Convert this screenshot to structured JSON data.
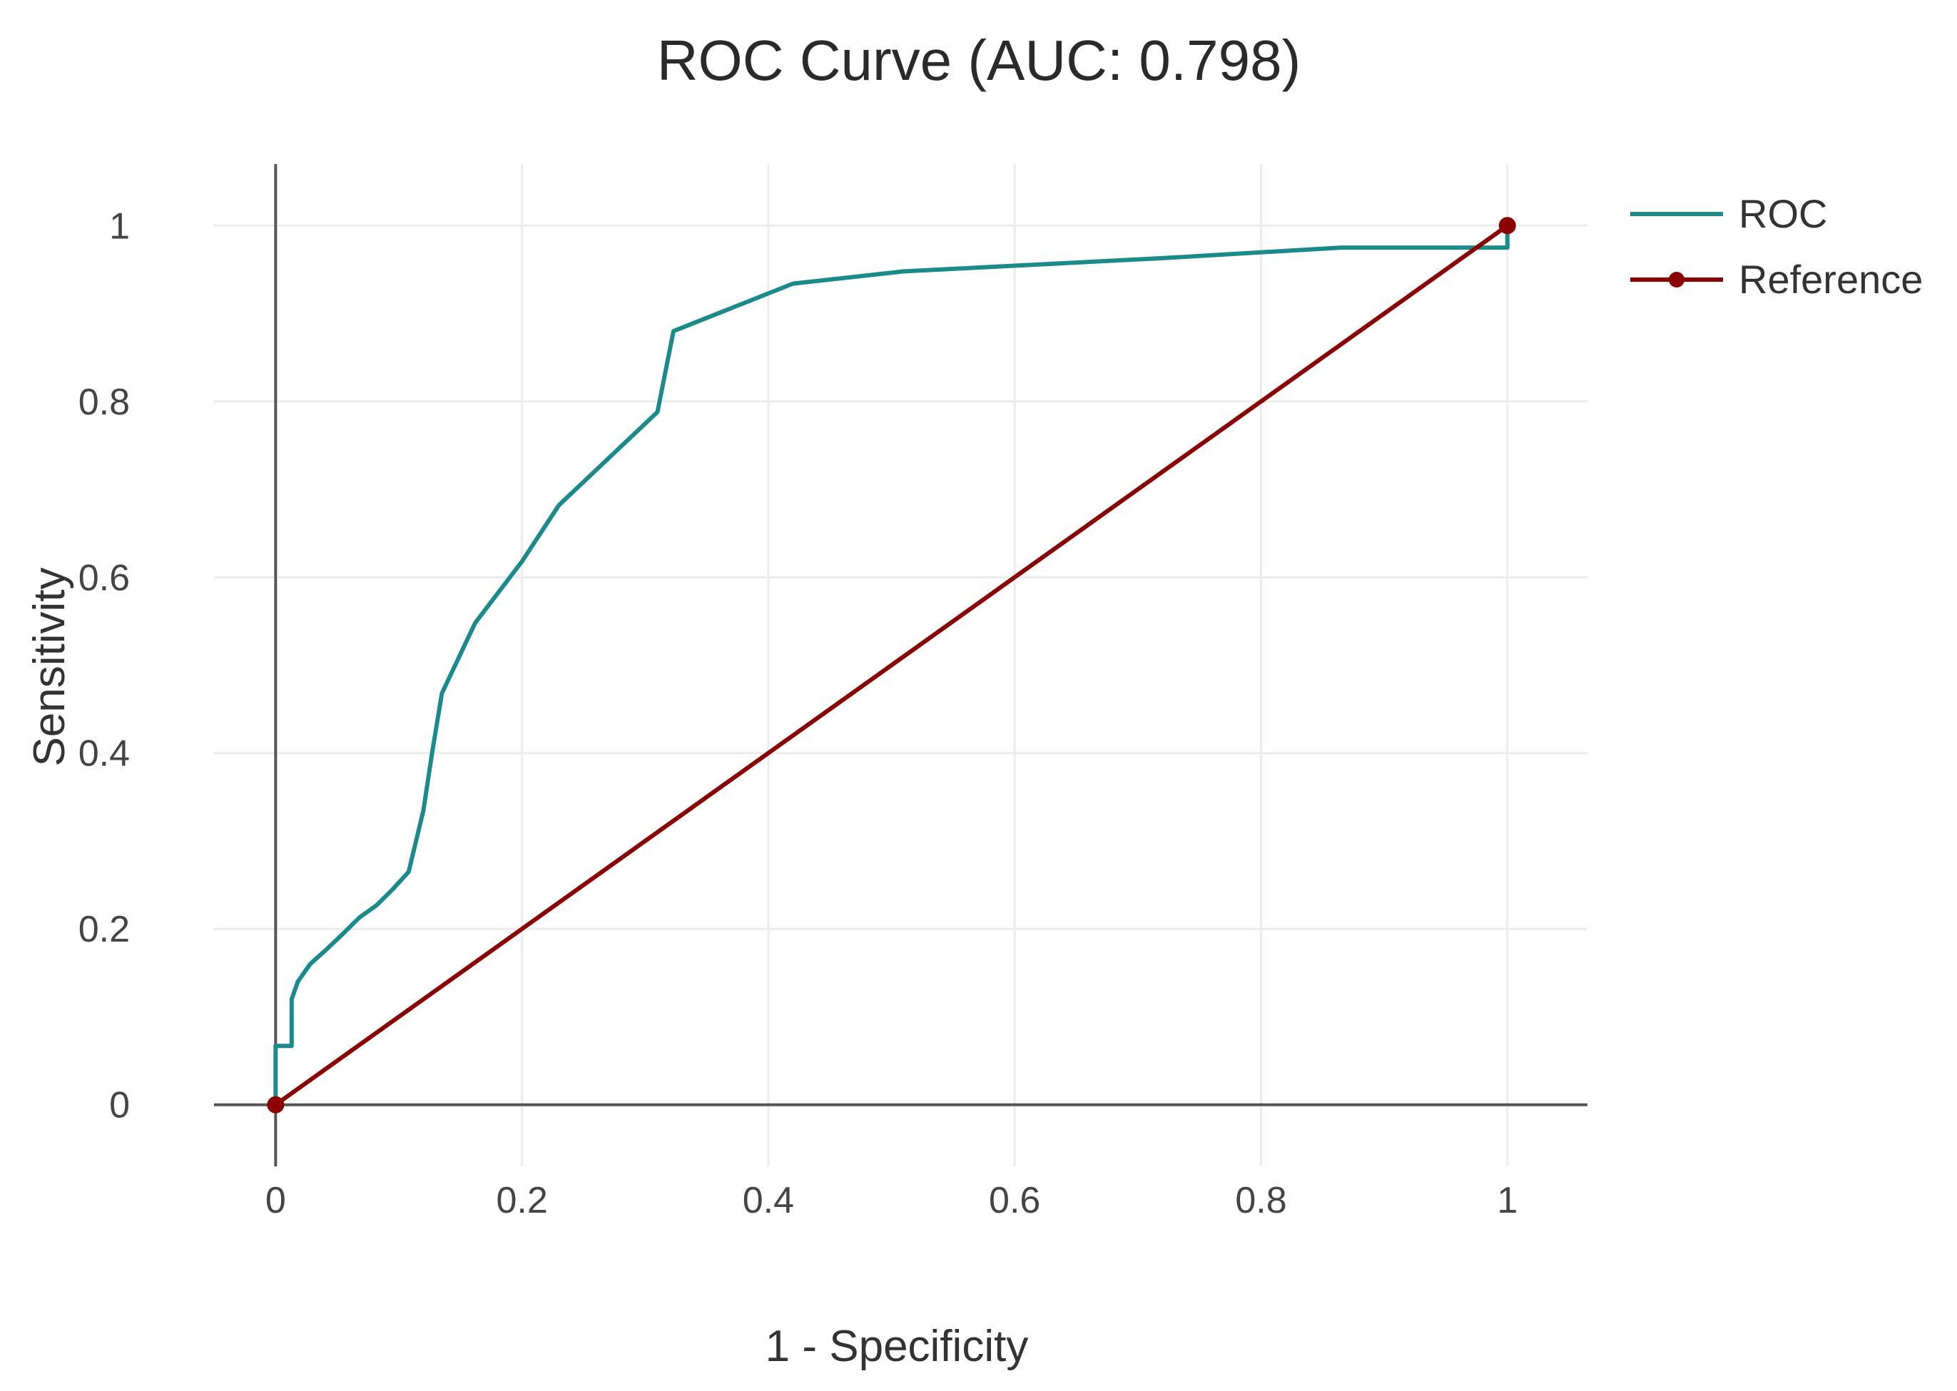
{
  "chart_data": {
    "type": "line",
    "title": "ROC Curve (AUC: 0.798)",
    "xlabel": "1 - Specificity",
    "ylabel": "Sensitivity",
    "xlim": [
      -0.05,
      1.065
    ],
    "ylim": [
      -0.07,
      1.07
    ],
    "x_ticks": [
      0,
      0.2,
      0.4,
      0.6,
      0.8,
      1
    ],
    "y_ticks": [
      0,
      0.2,
      0.4,
      0.6,
      0.8,
      1
    ],
    "x_tick_labels": [
      "0",
      "0.2",
      "0.4",
      "0.6",
      "0.8",
      "1"
    ],
    "y_tick_labels": [
      "0",
      "0.2",
      "0.4",
      "0.6",
      "0.8",
      "1"
    ],
    "grid": true,
    "legend_position": "top-right",
    "series": [
      {
        "name": "ROC",
        "color": "#1a8a8a",
        "marker": "none",
        "x": [
          0,
          0,
          0.013,
          0.013,
          0.018,
          0.028,
          0.04,
          0.055,
          0.068,
          0.082,
          0.095,
          0.108,
          0.12,
          0.127,
          0.135,
          0.162,
          0.2,
          0.23,
          0.31,
          0.323,
          0.42,
          0.51,
          0.72,
          0.865,
          0.985,
          1,
          1,
          1
        ],
        "y": [
          0,
          0.067,
          0.067,
          0.12,
          0.14,
          0.16,
          0.175,
          0.195,
          0.213,
          0.227,
          0.245,
          0.265,
          0.335,
          0.4,
          0.468,
          0.548,
          0.618,
          0.682,
          0.788,
          0.88,
          0.934,
          0.948,
          0.963,
          0.975,
          0.975,
          0.975,
          0.99,
          1.0
        ]
      },
      {
        "name": "Reference",
        "color": "#8b0000",
        "marker": "circle",
        "x": [
          0,
          1
        ],
        "y": [
          0,
          1
        ]
      }
    ]
  }
}
